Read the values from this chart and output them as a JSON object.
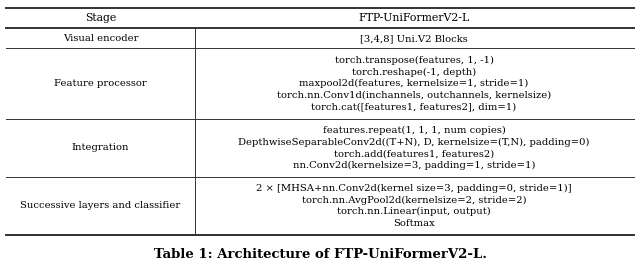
{
  "title": "Table 1: Architecture of FTP-UniFormerV2-L.",
  "header": [
    "Stage",
    "FTP-UniFormerV2-L"
  ],
  "rows": [
    {
      "stage": "Visual encoder",
      "content": "[3,4,8] Uni.V2 Blocks"
    },
    {
      "stage": "Feature processor",
      "content": "torch.transpose(features, 1, -1)\ntorch.reshape(-1, depth)\nmaxpool2d(features, kernelsize=1, stride=1)\ntorch.nn.Conv1d(inchannels, outchannels, kernelsize)\ntorch.cat([features1, features2], dim=1)"
    },
    {
      "stage": "Integration",
      "content": "features.repeat(1, 1, 1, num copies)\nDepthwiseSeparableConv2d((T+N), D, kernelsize=(T,N), padding=0)\ntorch.add(features1, features2)\nnn.Conv2d(kernelsize=3, padding=1, stride=1)"
    },
    {
      "stage": "Successive layers and classifier",
      "content": "2 × [MHSA+nn.Conv2d(kernel size=3, padding=0, stride=1)]\ntorch.nn.AvgPool2d(kernelsize=2, stride=2)\ntorch.nn.Linear(input, output)\nSoftmax"
    }
  ],
  "col_split": 0.3,
  "bg_color": "#ffffff",
  "line_color": "#333333",
  "font_size": 7.2,
  "header_font_size": 7.8,
  "title_font_size": 9.5
}
